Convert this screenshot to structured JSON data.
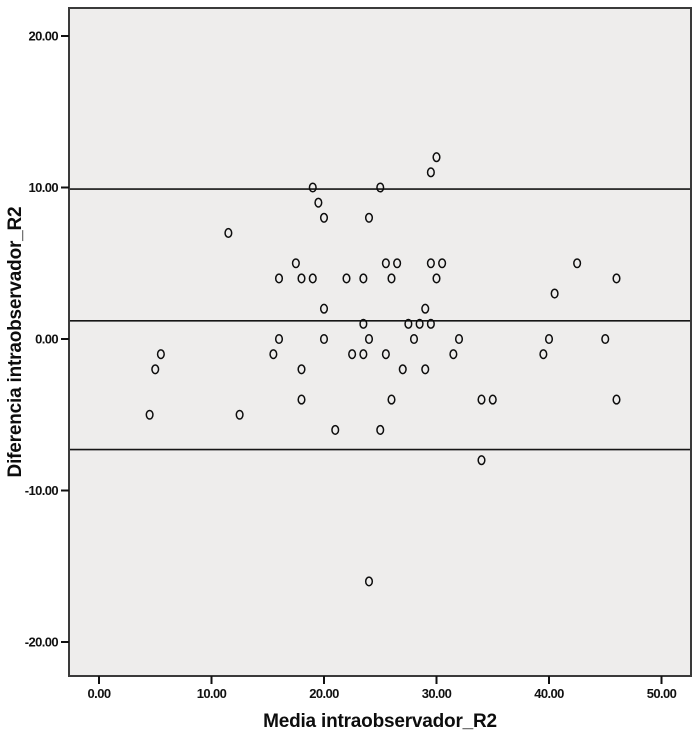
{
  "figure": {
    "background": "#ffffff",
    "plot_background": "#eeedec",
    "border_color": "#3a3a3a",
    "reference_line_color": "#161616",
    "tick_color": "#111111",
    "marker_color": "#0d0d0d"
  },
  "chart_data": {
    "type": "scatter",
    "title": "",
    "xlabel": "Media intraobservador_R2",
    "ylabel": "Diferencia intraobservador_R2",
    "x_ticks": [
      0,
      10,
      20,
      30,
      40,
      50
    ],
    "y_ticks": [
      20,
      10,
      0,
      -10,
      -20
    ],
    "xlim": [
      -2.7,
      52.6
    ],
    "ylim": [
      -22.2,
      21.9
    ],
    "grid": false,
    "legend": null,
    "marker": "open-circle",
    "reference_lines": {
      "upper": 9.9,
      "mean": 1.2,
      "lower": -7.3
    },
    "points": [
      [
        30,
        12
      ],
      [
        29.5,
        11
      ],
      [
        19,
        10
      ],
      [
        25,
        10
      ],
      [
        19.5,
        9
      ],
      [
        20,
        8
      ],
      [
        24,
        8
      ],
      [
        11.5,
        7
      ],
      [
        17.5,
        5
      ],
      [
        25.5,
        5
      ],
      [
        26.5,
        5
      ],
      [
        29.5,
        5
      ],
      [
        30.5,
        5
      ],
      [
        42.5,
        5
      ],
      [
        16,
        4
      ],
      [
        18,
        4
      ],
      [
        19,
        4
      ],
      [
        22,
        4
      ],
      [
        23.5,
        4
      ],
      [
        26,
        4
      ],
      [
        30,
        4
      ],
      [
        46,
        4
      ],
      [
        40.5,
        3
      ],
      [
        20,
        2
      ],
      [
        29,
        2
      ],
      [
        23.5,
        1
      ],
      [
        27.5,
        1
      ],
      [
        28.5,
        1
      ],
      [
        29.5,
        1
      ],
      [
        16,
        0
      ],
      [
        20,
        0
      ],
      [
        24,
        0
      ],
      [
        28,
        0
      ],
      [
        32,
        0
      ],
      [
        40,
        0
      ],
      [
        45,
        0
      ],
      [
        5.5,
        -1
      ],
      [
        15.5,
        -1
      ],
      [
        22.5,
        -1
      ],
      [
        23.5,
        -1
      ],
      [
        25.5,
        -1
      ],
      [
        31.5,
        -1
      ],
      [
        39.5,
        -1
      ],
      [
        5,
        -2
      ],
      [
        18,
        -2
      ],
      [
        27,
        -2
      ],
      [
        29,
        -2
      ],
      [
        18,
        -4
      ],
      [
        26,
        -4
      ],
      [
        34,
        -4
      ],
      [
        35,
        -4
      ],
      [
        46,
        -4
      ],
      [
        4.5,
        -5
      ],
      [
        12.5,
        -5
      ],
      [
        21,
        -6
      ],
      [
        25,
        -6
      ],
      [
        34,
        -8
      ],
      [
        24,
        -16
      ]
    ]
  }
}
